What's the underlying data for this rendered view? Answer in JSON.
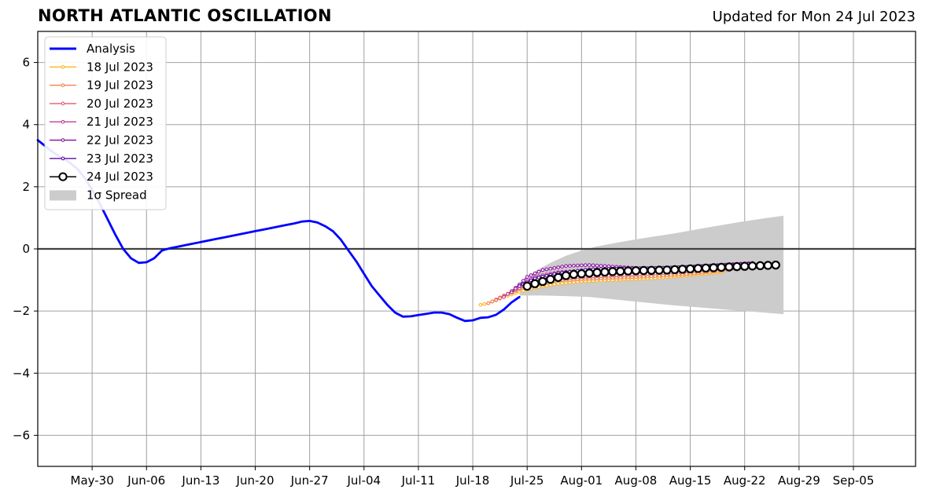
{
  "header": {
    "title": "NORTH ATLANTIC OSCILLATION",
    "updated": "Updated for Mon 24 Jul 2023"
  },
  "chart_data": {
    "type": "line",
    "title": "NORTH ATLANTIC OSCILLATION",
    "subtitle": "Updated for Mon 24 Jul 2023",
    "xlabel": "",
    "ylabel": "",
    "x_range": [
      "2023-05-23",
      "2023-09-13"
    ],
    "ylim": [
      -7,
      7
    ],
    "grid": true,
    "legend_position": "upper-left",
    "x_ticks": [
      "May-30",
      "Jun-06",
      "Jun-13",
      "Jun-20",
      "Jun-27",
      "Jul-04",
      "Jul-11",
      "Jul-18",
      "Jul-25",
      "Aug-01",
      "Aug-08",
      "Aug-15",
      "Aug-22",
      "Aug-29",
      "Sep-05"
    ],
    "x_tick_dates": [
      "2023-05-30",
      "2023-06-06",
      "2023-06-13",
      "2023-06-20",
      "2023-06-27",
      "2023-07-04",
      "2023-07-11",
      "2023-07-18",
      "2023-07-25",
      "2023-08-01",
      "2023-08-08",
      "2023-08-15",
      "2023-08-22",
      "2023-08-29",
      "2023-09-05"
    ],
    "y_ticks": [
      6,
      4,
      2,
      0,
      -2,
      -4,
      -6
    ],
    "y_tick_labels": [
      "6",
      "4",
      "2",
      "0",
      "−2",
      "−4",
      "−6"
    ],
    "zero_line": 0,
    "analysis": {
      "name": "Analysis",
      "color": "#0000ff",
      "points": [
        [
          "2023-05-23",
          3.5
        ],
        [
          "2023-05-24",
          3.3
        ],
        [
          "2023-05-25",
          3.1
        ],
        [
          "2023-05-26",
          2.95
        ],
        [
          "2023-05-27",
          2.8
        ],
        [
          "2023-05-28",
          2.6
        ],
        [
          "2023-05-29",
          2.3
        ],
        [
          "2023-05-30",
          1.9
        ],
        [
          "2023-05-31",
          1.45
        ],
        [
          "2023-06-01",
          0.95
        ],
        [
          "2023-06-02",
          0.45
        ],
        [
          "2023-06-03",
          0.0
        ],
        [
          "2023-06-04",
          -0.3
        ],
        [
          "2023-06-05",
          -0.45
        ],
        [
          "2023-06-06",
          -0.43
        ],
        [
          "2023-06-07",
          -0.3
        ],
        [
          "2023-06-08",
          -0.05
        ],
        [
          "2023-06-09",
          0.02
        ],
        [
          "2023-06-10",
          0.07
        ],
        [
          "2023-06-11",
          0.12
        ],
        [
          "2023-06-12",
          0.17
        ],
        [
          "2023-06-13",
          0.22
        ],
        [
          "2023-06-14",
          0.27
        ],
        [
          "2023-06-15",
          0.32
        ],
        [
          "2023-06-16",
          0.37
        ],
        [
          "2023-06-17",
          0.42
        ],
        [
          "2023-06-18",
          0.47
        ],
        [
          "2023-06-19",
          0.52
        ],
        [
          "2023-06-20",
          0.57
        ],
        [
          "2023-06-21",
          0.62
        ],
        [
          "2023-06-22",
          0.67
        ],
        [
          "2023-06-23",
          0.72
        ],
        [
          "2023-06-24",
          0.77
        ],
        [
          "2023-06-25",
          0.82
        ],
        [
          "2023-06-26",
          0.88
        ],
        [
          "2023-06-27",
          0.9
        ],
        [
          "2023-06-28",
          0.85
        ],
        [
          "2023-06-29",
          0.73
        ],
        [
          "2023-06-30",
          0.57
        ],
        [
          "2023-07-01",
          0.3
        ],
        [
          "2023-07-02",
          -0.05
        ],
        [
          "2023-07-03",
          -0.4
        ],
        [
          "2023-07-04",
          -0.8
        ],
        [
          "2023-07-05",
          -1.2
        ],
        [
          "2023-07-06",
          -1.5
        ],
        [
          "2023-07-07",
          -1.8
        ],
        [
          "2023-07-08",
          -2.05
        ],
        [
          "2023-07-09",
          -2.18
        ],
        [
          "2023-07-10",
          -2.17
        ],
        [
          "2023-07-11",
          -2.13
        ],
        [
          "2023-07-12",
          -2.09
        ],
        [
          "2023-07-13",
          -2.05
        ],
        [
          "2023-07-14",
          -2.05
        ],
        [
          "2023-07-15",
          -2.1
        ],
        [
          "2023-07-16",
          -2.22
        ],
        [
          "2023-07-17",
          -2.32
        ],
        [
          "2023-07-18",
          -2.3
        ],
        [
          "2023-07-19",
          -2.22
        ],
        [
          "2023-07-20",
          -2.2
        ],
        [
          "2023-07-21",
          -2.12
        ],
        [
          "2023-07-22",
          -1.95
        ],
        [
          "2023-07-23",
          -1.72
        ],
        [
          "2023-07-24",
          -1.55
        ]
      ]
    },
    "spread": {
      "name": "1σ Spread",
      "color": "#cccccc",
      "upper": [
        [
          "2023-07-24",
          -1.5
        ],
        [
          "2023-07-25",
          -1.0
        ],
        [
          "2023-07-26",
          -0.72
        ],
        [
          "2023-07-28",
          -0.45
        ],
        [
          "2023-07-30",
          -0.22
        ],
        [
          "2023-08-01",
          -0.05
        ],
        [
          "2023-08-03",
          0.08
        ],
        [
          "2023-08-06",
          0.22
        ],
        [
          "2023-08-09",
          0.35
        ],
        [
          "2023-08-13",
          0.5
        ],
        [
          "2023-08-17",
          0.68
        ],
        [
          "2023-08-21",
          0.85
        ],
        [
          "2023-08-25",
          1.0
        ],
        [
          "2023-08-27",
          1.07
        ]
      ],
      "lower": [
        [
          "2023-07-24",
          -1.5
        ],
        [
          "2023-07-27",
          -1.5
        ],
        [
          "2023-07-30",
          -1.52
        ],
        [
          "2023-08-02",
          -1.55
        ],
        [
          "2023-08-05",
          -1.62
        ],
        [
          "2023-08-09",
          -1.72
        ],
        [
          "2023-08-13",
          -1.82
        ],
        [
          "2023-08-17",
          -1.9
        ],
        [
          "2023-08-21",
          -1.98
        ],
        [
          "2023-08-25",
          -2.06
        ],
        [
          "2023-08-27",
          -2.1
        ]
      ]
    },
    "series": [
      {
        "name": "18 Jul 2023",
        "color": "#fcb620",
        "marker": "small",
        "start": "2023-07-19",
        "step_hours": 12,
        "end": "2023-08-19",
        "anchors": [
          [
            "2023-07-19",
            -1.8
          ],
          [
            "2023-07-20",
            -1.75
          ],
          [
            "2023-07-22",
            -1.55
          ],
          [
            "2023-07-24",
            -1.38
          ],
          [
            "2023-07-26",
            -1.25
          ],
          [
            "2023-07-29",
            -1.12
          ],
          [
            "2023-08-01",
            -1.05
          ],
          [
            "2023-08-05",
            -1.0
          ],
          [
            "2023-08-10",
            -0.95
          ],
          [
            "2023-08-15",
            -0.85
          ],
          [
            "2023-08-19",
            -0.75
          ]
        ]
      },
      {
        "name": "19 Jul 2023",
        "color": "#f1814d",
        "marker": "small",
        "start": "2023-07-20",
        "step_hours": 12,
        "end": "2023-08-20",
        "anchors": [
          [
            "2023-07-20",
            -1.75
          ],
          [
            "2023-07-22",
            -1.5
          ],
          [
            "2023-07-24",
            -1.3
          ],
          [
            "2023-07-26",
            -1.15
          ],
          [
            "2023-07-29",
            -1.02
          ],
          [
            "2023-08-01",
            -0.97
          ],
          [
            "2023-08-05",
            -0.93
          ],
          [
            "2023-08-10",
            -0.88
          ],
          [
            "2023-08-15",
            -0.8
          ],
          [
            "2023-08-20",
            -0.68
          ]
        ]
      },
      {
        "name": "20 Jul 2023",
        "color": "#e05c72",
        "marker": "small",
        "start": "2023-07-21",
        "step_hours": 12,
        "end": "2023-08-21",
        "anchors": [
          [
            "2023-07-21",
            -1.65
          ],
          [
            "2023-07-23",
            -1.38
          ],
          [
            "2023-07-25",
            -1.15
          ],
          [
            "2023-07-28",
            -0.98
          ],
          [
            "2023-08-01",
            -0.9
          ],
          [
            "2023-08-05",
            -0.86
          ],
          [
            "2023-08-10",
            -0.8
          ],
          [
            "2023-08-15",
            -0.72
          ],
          [
            "2023-08-21",
            -0.62
          ]
        ]
      },
      {
        "name": "21 Jul 2023",
        "color": "#c03d95",
        "marker": "small",
        "start": "2023-07-22",
        "step_hours": 12,
        "end": "2023-08-22",
        "anchors": [
          [
            "2023-07-22",
            -1.55
          ],
          [
            "2023-07-24",
            -1.15
          ],
          [
            "2023-07-26",
            -0.9
          ],
          [
            "2023-07-29",
            -0.75
          ],
          [
            "2023-08-02",
            -0.68
          ],
          [
            "2023-08-06",
            -0.65
          ],
          [
            "2023-08-10",
            -0.62
          ],
          [
            "2023-08-15",
            -0.58
          ],
          [
            "2023-08-22",
            -0.5
          ]
        ]
      },
      {
        "name": "22 Jul 2023",
        "color": "#8e1ca3",
        "marker": "small",
        "start": "2023-07-23",
        "step_hours": 12,
        "end": "2023-08-23",
        "anchors": [
          [
            "2023-07-23",
            -1.4
          ],
          [
            "2023-07-25",
            -0.9
          ],
          [
            "2023-07-27",
            -0.68
          ],
          [
            "2023-07-30",
            -0.55
          ],
          [
            "2023-08-02",
            -0.52
          ],
          [
            "2023-08-05",
            -0.57
          ],
          [
            "2023-08-09",
            -0.63
          ],
          [
            "2023-08-13",
            -0.6
          ],
          [
            "2023-08-18",
            -0.53
          ],
          [
            "2023-08-23",
            -0.45
          ]
        ]
      },
      {
        "name": "23 Jul 2023",
        "color": "#5a0fa8",
        "marker": "small",
        "start": "2023-07-24",
        "step_hours": 12,
        "end": "2023-08-23",
        "anchors": [
          [
            "2023-07-24",
            -1.2
          ],
          [
            "2023-07-26",
            -0.95
          ],
          [
            "2023-07-29",
            -0.78
          ],
          [
            "2023-08-02",
            -0.66
          ],
          [
            "2023-08-06",
            -0.63
          ],
          [
            "2023-08-10",
            -0.62
          ],
          [
            "2023-08-15",
            -0.58
          ],
          [
            "2023-08-20",
            -0.52
          ],
          [
            "2023-08-23",
            -0.48
          ]
        ]
      },
      {
        "name": "24 Jul 2023",
        "color": "#000000",
        "marker": "open-circle",
        "start": "2023-07-25",
        "step_hours": 24,
        "end": "2023-08-26",
        "anchors": [
          [
            "2023-07-25",
            -1.2
          ],
          [
            "2023-07-26",
            -1.12
          ],
          [
            "2023-07-27",
            -1.05
          ],
          [
            "2023-07-28",
            -0.98
          ],
          [
            "2023-07-29",
            -0.92
          ],
          [
            "2023-07-30",
            -0.86
          ],
          [
            "2023-07-31",
            -0.82
          ],
          [
            "2023-08-01",
            -0.8
          ],
          [
            "2023-08-03",
            -0.76
          ],
          [
            "2023-08-05",
            -0.73
          ],
          [
            "2023-08-08",
            -0.7
          ],
          [
            "2023-08-12",
            -0.68
          ],
          [
            "2023-08-16",
            -0.63
          ],
          [
            "2023-08-20",
            -0.58
          ],
          [
            "2023-08-23",
            -0.55
          ],
          [
            "2023-08-26",
            -0.52
          ]
        ]
      }
    ],
    "legend": [
      {
        "label": "Analysis",
        "color": "#0000ff",
        "kind": "thick-line"
      },
      {
        "label": "18 Jul 2023",
        "color": "#fcb620",
        "kind": "line-marker"
      },
      {
        "label": "19 Jul 2023",
        "color": "#f1814d",
        "kind": "line-marker"
      },
      {
        "label": "20 Jul 2023",
        "color": "#e05c72",
        "kind": "line-marker"
      },
      {
        "label": "21 Jul 2023",
        "color": "#c03d95",
        "kind": "line-marker"
      },
      {
        "label": "22 Jul 2023",
        "color": "#8e1ca3",
        "kind": "line-marker"
      },
      {
        "label": "23 Jul 2023",
        "color": "#5a0fa8",
        "kind": "line-marker"
      },
      {
        "label": "24 Jul 2023",
        "color": "#000000",
        "kind": "open-circle"
      },
      {
        "label": "1σ Spread",
        "color": "#cccccc",
        "kind": "patch"
      }
    ]
  }
}
